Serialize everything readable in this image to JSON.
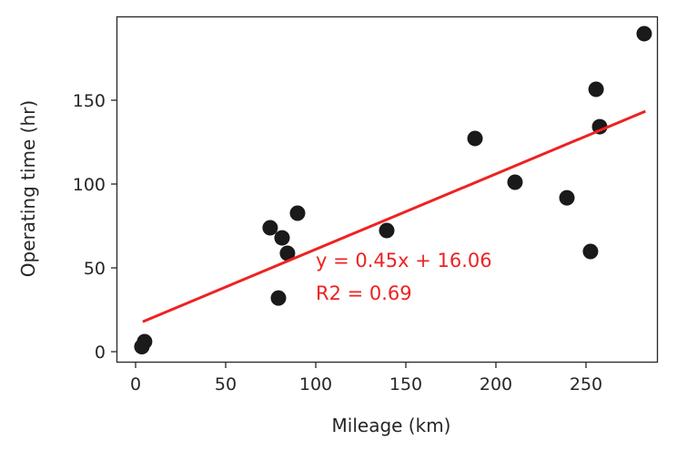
{
  "chart_data": {
    "type": "scatter",
    "xlabel": "Mileage (km)",
    "ylabel": "Operating time (hr)",
    "xlim": [
      -10,
      295
    ],
    "ylim": [
      -6,
      199
    ],
    "xticks": [
      0,
      50,
      100,
      150,
      200,
      250
    ],
    "yticks": [
      0,
      50,
      100,
      150
    ],
    "grid": false,
    "points": [
      {
        "x": 3.5,
        "y": 3
      },
      {
        "x": 5,
        "y": 6
      },
      {
        "x": 74.7,
        "y": 73.9
      },
      {
        "x": 81.3,
        "y": 67.9
      },
      {
        "x": 84.3,
        "y": 58.7
      },
      {
        "x": 89.9,
        "y": 82.6
      },
      {
        "x": 79.3,
        "y": 32
      },
      {
        "x": 139.4,
        "y": 72.3
      },
      {
        "x": 188.4,
        "y": 127.2
      },
      {
        "x": 210.6,
        "y": 101.1
      },
      {
        "x": 239.4,
        "y": 91.8
      },
      {
        "x": 252.5,
        "y": 59.8
      },
      {
        "x": 255.6,
        "y": 156.5
      },
      {
        "x": 257.6,
        "y": 134.2
      },
      {
        "x": 282.3,
        "y": 189.7
      }
    ],
    "point_color": "#1a1a1a",
    "fit": {
      "slope": 0.45,
      "intercept": 16.06,
      "x_range": [
        4,
        283
      ],
      "color": "#ee2222"
    },
    "annotations": [
      "y = 0.45x + 16.06",
      "R2 = 0.69"
    ]
  }
}
